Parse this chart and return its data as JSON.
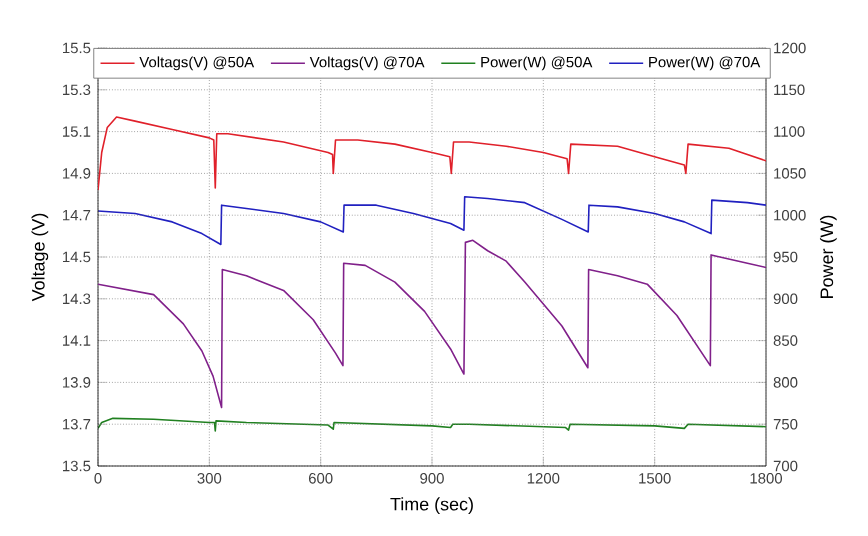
{
  "chart_data": {
    "type": "line",
    "xlabel": "Time (sec)",
    "ylabel": "Voltage (V)",
    "y2label": "Power (W)",
    "xlim": [
      0,
      1800
    ],
    "xticks": [
      0,
      300,
      600,
      900,
      1200,
      1500,
      1800
    ],
    "ylim": [
      13.5,
      15.5
    ],
    "yticks": [
      13.5,
      13.7,
      13.9,
      14.1,
      14.3,
      14.5,
      14.7,
      14.9,
      15.1,
      15.3,
      15.5
    ],
    "y2lim": [
      700,
      1200
    ],
    "y2ticks": [
      700,
      750,
      800,
      850,
      900,
      950,
      1000,
      1050,
      1100,
      1150,
      1200
    ],
    "grid": true,
    "legend": "top",
    "marker": "none",
    "line_style": "solid",
    "series": [
      {
        "name": "Voltags(V) @50A",
        "color": "#e0202a",
        "x": [
          0,
          10,
          25,
          50,
          100,
          200,
          300,
          312,
          316,
          320,
          350,
          500,
          620,
          632,
          634,
          640,
          700,
          800,
          900,
          948,
          952,
          958,
          1000,
          1100,
          1200,
          1264,
          1268,
          1274,
          1400,
          1500,
          1580,
          1584,
          1590,
          1700,
          1800
        ],
        "values": [
          14.82,
          15.0,
          15.12,
          15.17,
          15.15,
          15.11,
          15.07,
          15.06,
          14.83,
          15.09,
          15.09,
          15.05,
          15.0,
          14.99,
          14.9,
          15.06,
          15.06,
          15.04,
          15.0,
          14.98,
          14.9,
          15.05,
          15.05,
          15.03,
          15.0,
          14.97,
          14.9,
          15.04,
          15.03,
          14.98,
          14.94,
          14.9,
          15.04,
          15.02,
          14.96
        ]
      },
      {
        "name": "Voltags(V) @70A",
        "color": "#80208a",
        "x": [
          0,
          150,
          230,
          280,
          310,
          333,
          335,
          400,
          500,
          580,
          640,
          660,
          662,
          720,
          800,
          880,
          950,
          986,
          990,
          1010,
          1050,
          1100,
          1150,
          1250,
          1320,
          1322,
          1400,
          1480,
          1560,
          1620,
          1650,
          1652,
          1750,
          1800
        ],
        "values": [
          14.37,
          14.32,
          14.18,
          14.05,
          13.93,
          13.78,
          14.44,
          14.41,
          14.34,
          14.2,
          14.04,
          13.98,
          14.47,
          14.46,
          14.38,
          14.24,
          14.06,
          13.94,
          14.57,
          14.58,
          14.53,
          14.48,
          14.38,
          14.17,
          13.97,
          14.44,
          14.41,
          14.37,
          14.22,
          14.06,
          13.98,
          14.51,
          14.47,
          14.45
        ]
      },
      {
        "name": "Power(W) @50A",
        "color": "#208020",
        "axis": "y2",
        "x": [
          0,
          10,
          40,
          150,
          300,
          314,
          316,
          318,
          400,
          620,
          634,
          636,
          900,
          950,
          956,
          1000,
          1260,
          1268,
          1272,
          1500,
          1580,
          1590,
          1800
        ],
        "values": [
          745,
          752,
          757,
          756,
          752,
          752,
          742,
          754,
          752,
          749,
          744,
          752,
          748,
          746,
          750,
          750,
          746,
          743,
          750,
          748,
          745,
          750,
          747
        ]
      },
      {
        "name": "Power(W) @70A",
        "color": "#2020c0",
        "axis": "y2",
        "x": [
          0,
          100,
          200,
          280,
          331,
          333,
          400,
          500,
          600,
          661,
          663,
          750,
          850,
          950,
          986,
          988,
          1050,
          1150,
          1250,
          1321,
          1323,
          1400,
          1500,
          1580,
          1652,
          1654,
          1750,
          1800
        ],
        "values": [
          1005,
          1002,
          992,
          978,
          965,
          1012,
          1008,
          1002,
          992,
          980,
          1012,
          1012,
          1002,
          990,
          982,
          1022,
          1020,
          1015,
          995,
          980,
          1012,
          1010,
          1002,
          992,
          978,
          1018,
          1015,
          1012
        ]
      }
    ]
  }
}
